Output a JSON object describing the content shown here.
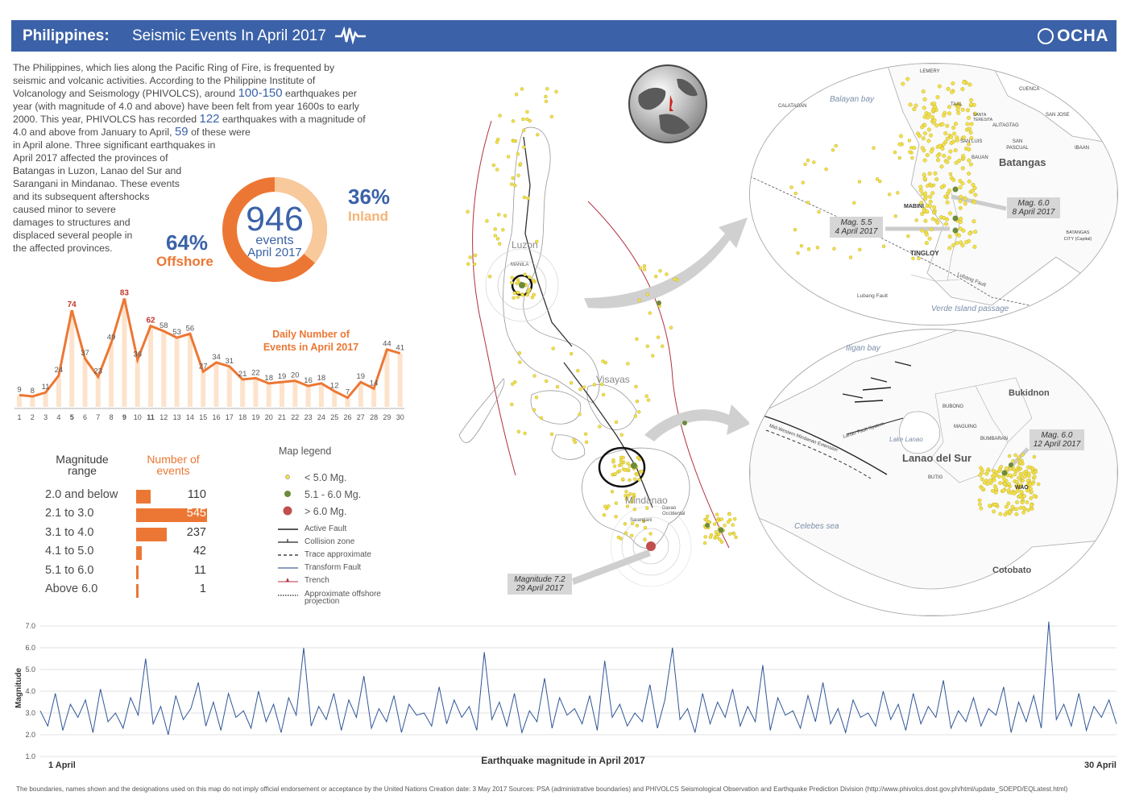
{
  "header": {
    "country": "Philippines:",
    "title": "Seismic Events In April 2017",
    "logo": "OCHA",
    "pulse_icon": "seismograph-icon",
    "bg_color": "#3b62a8"
  },
  "intro": {
    "p1": "The Philippines, which lies along the Pacific Ring of Fire, is frequented by",
    "p2": "seismic and volcanic activities. According to the Philippine Institute of",
    "p3a": "Volcanology and Seismology (PHIVOLCS), around ",
    "p3b": "100-150",
    "p3c": " earthquakes per",
    "p4": "year (with magnitude of 4.0 and above) have been felt from year 1600s to early",
    "p5a": "2000. This year, PHIVOLCS has recorded ",
    "p5b": "122",
    "p5c": " earthquakes with a magnitude of",
    "p6a": "4.0 and above from January to April, ",
    "p6b": "59",
    "p6c": " of these were",
    "p7": "in April alone. Three significant earthquakes in",
    "p8": "April 2017  affected the provinces of",
    "p9": "Batangas in Luzon, Lanao del Sur and",
    "p10": "Sarangani in Mindanao. These events",
    "p11": "and its subsequent aftershocks",
    "p12": "caused minor to severe",
    "p13": "damages to structures and",
    "p14": "displaced several people in",
    "p15": "the affected provinces."
  },
  "donut": {
    "total": "946",
    "events_label": "events",
    "period": "April 2017",
    "offshore_pct": "64%",
    "offshore_label": "Offshore",
    "inland_pct": "36%",
    "inland_label": "Inland",
    "offshore_value": 64,
    "inland_value": 36,
    "offshore_color": "#ec7734",
    "inland_color": "#f8c99b",
    "pct_color": "#3b62a8"
  },
  "daily_chart": {
    "title_line1": "Daily Number of",
    "title_line2": "Events in April 2017",
    "type": "area",
    "color": "#ec7734",
    "days": [
      "1",
      "2",
      "3",
      "4",
      "5",
      "6",
      "7",
      "8",
      "9",
      "10",
      "11",
      "12",
      "13",
      "14",
      "15",
      "16",
      "17",
      "18",
      "19",
      "20",
      "21",
      "22",
      "23",
      "24",
      "25",
      "26",
      "27",
      "28",
      "29",
      "30"
    ],
    "values": [
      9,
      8,
      11,
      24,
      74,
      37,
      23,
      49,
      83,
      36,
      62,
      58,
      53,
      56,
      27,
      34,
      31,
      21,
      22,
      18,
      19,
      20,
      16,
      18,
      12,
      7,
      19,
      14,
      44,
      41
    ],
    "highlight_days": [
      "5",
      "9",
      "11"
    ]
  },
  "magnitude_table": {
    "col1_line1": "Magnitude",
    "col1_line2": "range",
    "col2_line1": "Number of",
    "col2_line2": "events",
    "rows": [
      {
        "range": "2.0 and below",
        "count": "110",
        "value": 110
      },
      {
        "range": "2.1 to 3.0",
        "count": "545",
        "value": 545
      },
      {
        "range": "3.1  to 4.0",
        "count": "237",
        "value": 237
      },
      {
        "range": "4.1 to 5.0",
        "count": "42",
        "value": 42
      },
      {
        "range": "5.1 to 6.0",
        "count": "11",
        "value": 11
      },
      {
        "range": "Above 6.0",
        "count": "1",
        "value": 1
      }
    ]
  },
  "legend": {
    "title": "Map legend",
    "items": [
      {
        "label": "< 5.0 Mg.",
        "icon": "yellow-dot-icon",
        "color": "#f3e14b"
      },
      {
        "label": "5.1 - 6.0  Mg.",
        "icon": "green-dot-icon",
        "color": "#6d8b3a"
      },
      {
        "label": "> 6.0  Mg.",
        "icon": "red-dot-icon",
        "color": "#c0504d"
      },
      {
        "label": "Active Fault",
        "icon": "solid-line-icon"
      },
      {
        "label": "Collision zone",
        "icon": "collision-line-icon"
      },
      {
        "label": "Trace approximate",
        "icon": "dashed-line-icon"
      },
      {
        "label": "Transform Fault",
        "icon": "transform-line-icon"
      },
      {
        "label": "Trench",
        "icon": "trench-line-icon",
        "color": "#b03040"
      },
      {
        "label": "Approximate offshore projection",
        "icon": "dotted-line-icon"
      }
    ]
  },
  "map": {
    "luzon": "Luzon",
    "manila": "MANILA",
    "visayas": "Visayas",
    "mindanao": "Mindanao",
    "davao": "Davao Occidental",
    "sarangani": "Sarangani",
    "callout_main": {
      "line1": "Magnitude 7.2",
      "line2": "29 April 2017"
    }
  },
  "inset_batangas": {
    "province": "Batangas",
    "water": [
      "Balayan bay",
      "Verde Island passage"
    ],
    "places": [
      "LEMERY",
      "CALATAGAN",
      "CUENCA",
      "TAAL",
      "SANTA TERESITA",
      "SAN JOSE",
      "ALITAGTAG",
      "SAN LUIS",
      "SAN PASCUAL",
      "IBAAN",
      "BAUAN",
      "MABINI",
      "TINGLOY",
      "BATANGAS CITY (Capital)"
    ],
    "faults": [
      "Lubang Fault",
      "Lubang Fault"
    ],
    "callout1": {
      "line1": "Mag. 6.0",
      "line2": "8 April 2017"
    },
    "callout2": {
      "line1": "Mag. 5.5",
      "line2": "4 April 2017"
    }
  },
  "inset_lanao": {
    "province": "Lanao del Sur",
    "water": [
      "Iligan bay",
      "Lake Lanao",
      "Celebes sea"
    ],
    "regions": [
      "Bukidnon",
      "Cotobato"
    ],
    "places": [
      "BUBONG",
      "MAGUING",
      "BUMBARAN",
      "BUTIG",
      "WAO"
    ],
    "faults": [
      "Mid-Western Mindanao Extension",
      "Lanao Fault System"
    ],
    "callout": {
      "line1": "Mag. 6.0",
      "line2": "12 April 2017"
    }
  },
  "magnitude_chart": {
    "type": "line",
    "xlabel": "Earthquake magnitude in April 2017",
    "ylabel": "Magnitude",
    "ylim": [
      1.0,
      7.0
    ],
    "yticks": [
      "7.0",
      "6.0",
      "5.0",
      "4.0",
      "3.0",
      "2.0",
      "1.0"
    ],
    "x_start": "1 April",
    "x_end": "30 April",
    "color": "#2f5597",
    "values": [
      3.1,
      2.4,
      3.9,
      2.2,
      3.4,
      2.8,
      3.6,
      2.1,
      4.1,
      2.6,
      3.0,
      2.3,
      3.7,
      2.9,
      5.5,
      2.5,
      3.3,
      2.0,
      3.8,
      2.7,
      3.2,
      4.4,
      2.4,
      3.5,
      2.2,
      3.9,
      2.8,
      3.1,
      2.3,
      4.0,
      2.6,
      3.4,
      2.1,
      3.7,
      2.9,
      6.0,
      2.4,
      3.3,
      2.7,
      3.9,
      2.2,
      3.6,
      2.8,
      4.7,
      2.3,
      3.2,
      2.6,
      3.8,
      2.1,
      3.4,
      2.9,
      3.0,
      2.4,
      4.2,
      2.5,
      3.6,
      2.8,
      3.3,
      2.2,
      5.8,
      2.7,
      3.5,
      2.4,
      3.9,
      2.1,
      3.1,
      2.6,
      4.6,
      2.3,
      3.7,
      2.9,
      3.2,
      2.5,
      3.8,
      2.2,
      5.4,
      2.8,
      3.4,
      2.4,
      3.0,
      2.6,
      4.3,
      2.3,
      3.6,
      6.0,
      2.7,
      3.2,
      2.1,
      3.9,
      2.5,
      3.5,
      2.8,
      4.1,
      2.4,
      3.3,
      2.6,
      5.2,
      2.2,
      3.7,
      2.9,
      3.1,
      2.3,
      3.8,
      2.6,
      4.4,
      2.5,
      3.2,
      2.1,
      3.6,
      2.8,
      3.0,
      2.4,
      4.0,
      2.7,
      3.4,
      2.2,
      3.9,
      2.5,
      3.3,
      2.8,
      4.5,
      2.3,
      3.1,
      2.6,
      3.7,
      2.4,
      3.2,
      2.9,
      4.2,
      2.1,
      3.5,
      2.6,
      3.8,
      2.3,
      7.2,
      2.7,
      3.4,
      2.4,
      3.9,
      2.2,
      3.3,
      2.8,
      3.6,
      2.5
    ]
  },
  "footer": {
    "text": "The boundaries, names shown and the designations used on this map do not imply official endorsement  or acceptance by the United Nations   Creation date: 3 May 2017   Sources: PSA (administrative boundaries) and PHIVOLCS Seismological Observation and Earthquake Prediction Division (http://www.phivolcs.dost.gov.ph/html/update_SOEPD/EQLatest.html)"
  }
}
